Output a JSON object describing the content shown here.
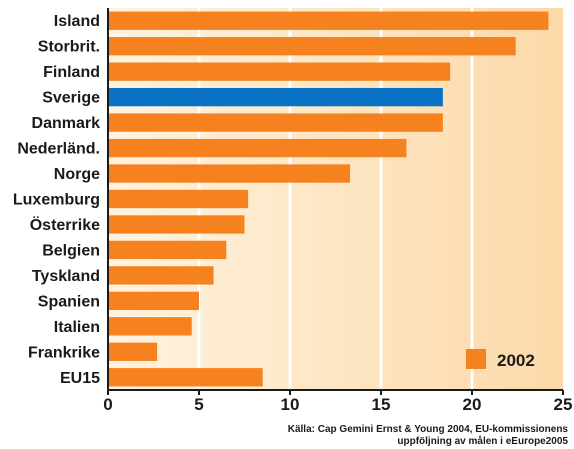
{
  "chart_data": {
    "type": "bar",
    "orientation": "horizontal",
    "categories": [
      "Island",
      "Storbrit.",
      "Finland",
      "Sverige",
      "Danmark",
      "Nederländ.",
      "Norge",
      "Luxemburg",
      "Österrike",
      "Belgien",
      "Tyskland",
      "Spanien",
      "Italien",
      "Frankrike",
      "EU15"
    ],
    "series": [
      {
        "name": "2002",
        "values": [
          24.2,
          22.4,
          18.8,
          18.4,
          18.4,
          16.4,
          13.3,
          7.7,
          7.5,
          6.5,
          5.8,
          5.0,
          4.6,
          2.7,
          8.5
        ]
      }
    ],
    "highlight_category": "Sverige",
    "colors": {
      "bar": "#f5821f",
      "highlight": "#0a72c4",
      "axis": "#1a1a1a",
      "bg_light": "#fff3e0",
      "bg_dark": "#fcd9a8",
      "grid": "#ffffff"
    },
    "xlim": [
      0,
      25
    ],
    "xticks": [
      "0",
      "5",
      "10",
      "15",
      "20",
      "25"
    ],
    "grid": true,
    "legend_position": "bottom-right",
    "source_lines": [
      "Källa: Cap Gemini Ernst & Young 2004, EU-kommissionens",
      "uppföljning av målen i eEurope2005"
    ]
  }
}
